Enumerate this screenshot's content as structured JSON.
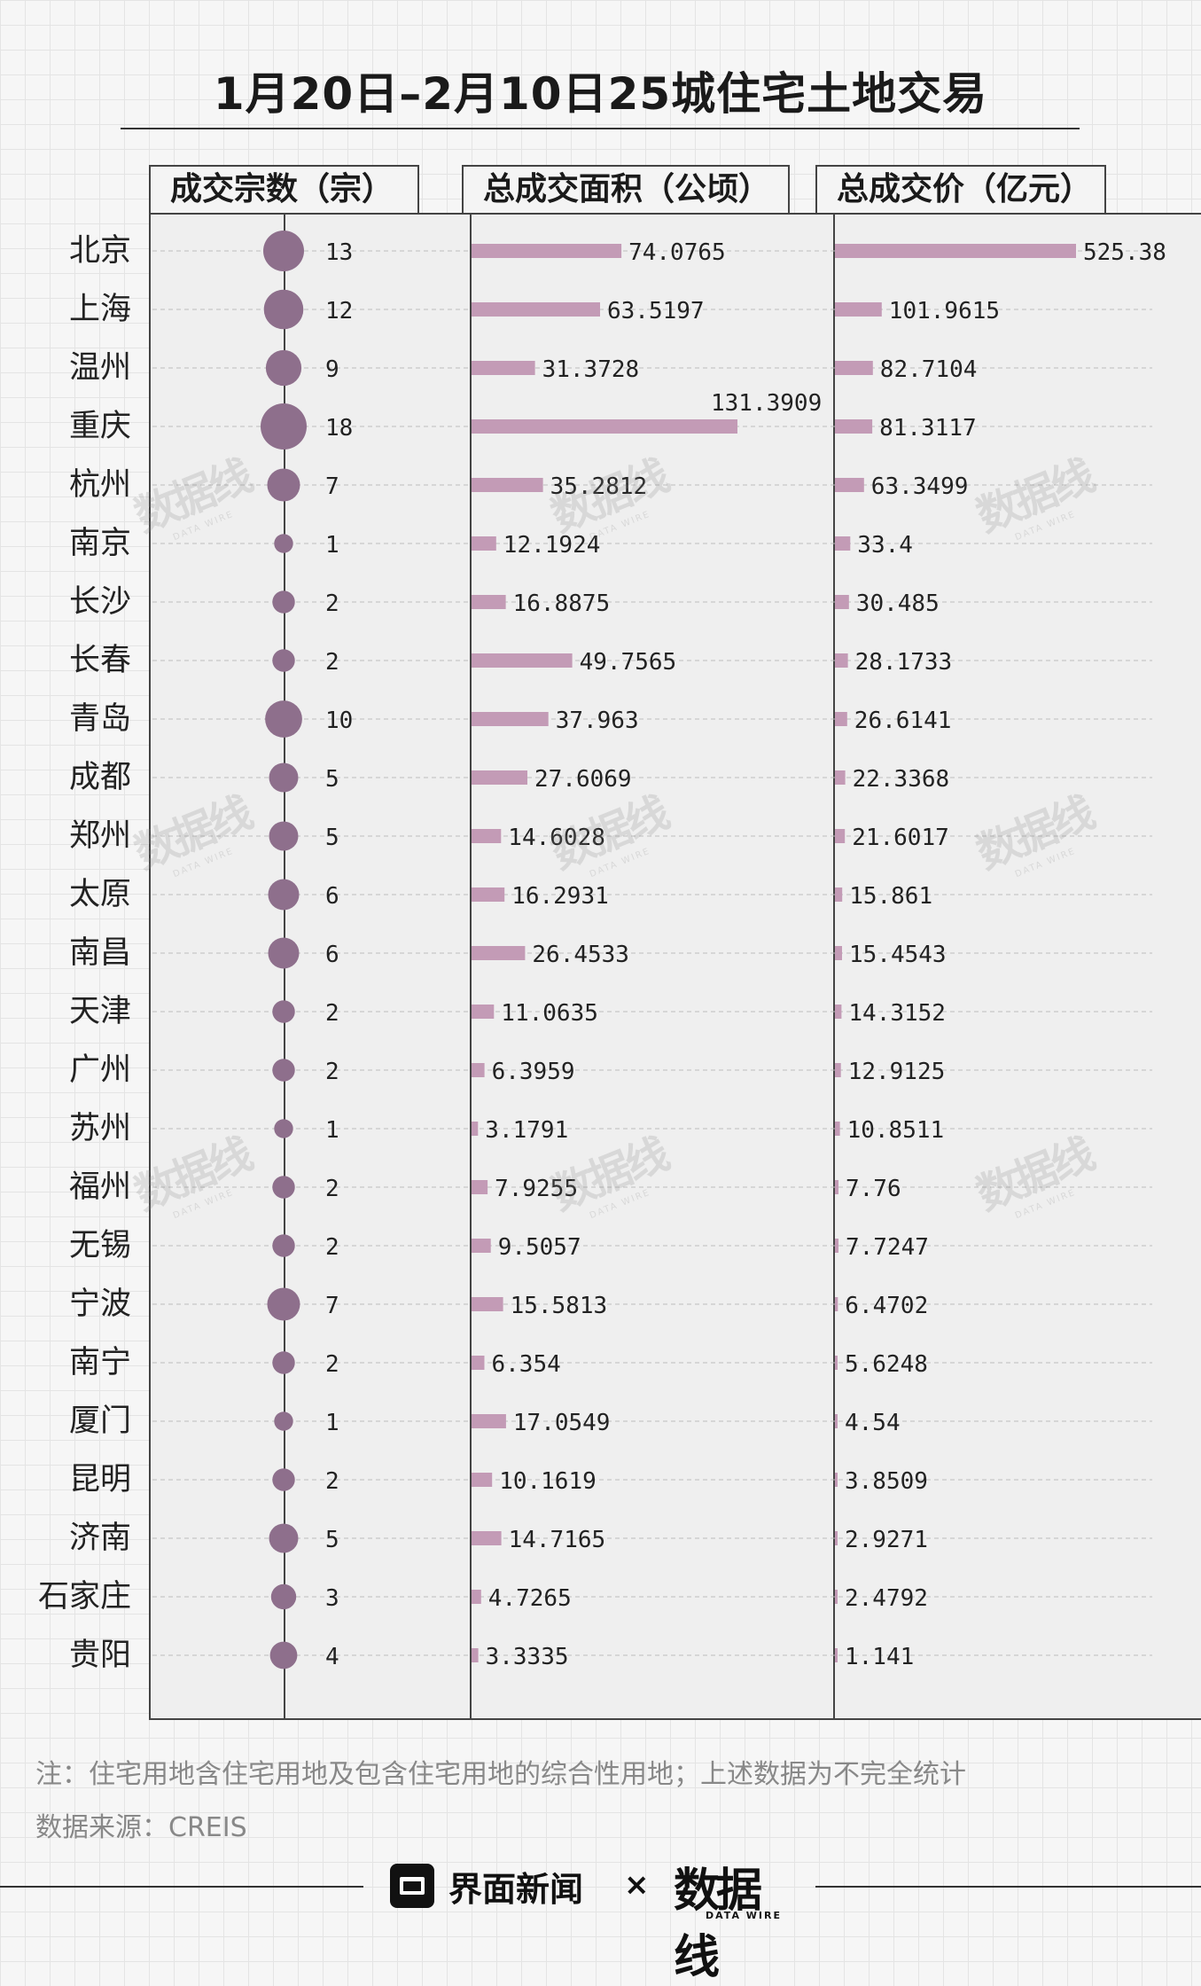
{
  "title": "1月20日–2月10日25城住宅土地交易",
  "headers": {
    "count": "成交宗数（宗）",
    "area": "总成交面积（公顷）",
    "price": "总成交价（亿元）"
  },
  "colors": {
    "dot": "#8e6f8c",
    "bar": "#c39bb6",
    "axis": "#444444",
    "note": "#888888"
  },
  "chart_data": {
    "type": "bar",
    "categories": [
      "北京",
      "上海",
      "温州",
      "重庆",
      "杭州",
      "南京",
      "长沙",
      "长春",
      "青岛",
      "成都",
      "郑州",
      "太原",
      "南昌",
      "天津",
      "广州",
      "苏州",
      "福州",
      "无锡",
      "宁波",
      "南宁",
      "厦门",
      "昆明",
      "济南",
      "石家庄",
      "贵阳"
    ],
    "series": [
      {
        "name": "成交宗数（宗）",
        "marker": "dot",
        "values": [
          13,
          12,
          9,
          18,
          7,
          1,
          2,
          2,
          10,
          5,
          5,
          6,
          6,
          2,
          2,
          1,
          2,
          2,
          7,
          2,
          1,
          2,
          5,
          3,
          4
        ],
        "labels": [
          "13",
          "12",
          "9",
          "18",
          "7",
          "1",
          "2",
          "2",
          "10",
          "5",
          "5",
          "6",
          "6",
          "2",
          "2",
          "1",
          "2",
          "2",
          "7",
          "2",
          "1",
          "2",
          "5",
          "3",
          "4"
        ]
      },
      {
        "name": "总成交面积（公顷）",
        "marker": "bar",
        "values": [
          74.0765,
          63.5197,
          31.3728,
          131.3909,
          35.2812,
          12.1924,
          16.8875,
          49.7565,
          37.963,
          27.6069,
          14.6028,
          16.2931,
          26.4533,
          11.0635,
          6.3959,
          3.1791,
          7.9255,
          9.5057,
          15.5813,
          6.354,
          17.0549,
          10.1619,
          14.7165,
          4.7265,
          3.3335
        ],
        "labels": [
          "74.0765",
          "63.5197",
          "31.3728",
          "131.3909",
          "35.2812",
          "12.1924",
          "16.8875",
          "49.7565",
          "37.963",
          "27.6069",
          "14.6028",
          "16.2931",
          "26.4533",
          "11.0635",
          "6.3959",
          "3.1791",
          "7.9255",
          "9.5057",
          "15.5813",
          "6.354",
          "17.0549",
          "10.1619",
          "14.7165",
          "4.7265",
          "3.3335"
        ]
      },
      {
        "name": "总成交价（亿元）",
        "marker": "bar",
        "values": [
          525.38,
          101.9615,
          82.7104,
          81.3117,
          63.3499,
          33.4,
          30.485,
          28.1733,
          26.6141,
          22.3368,
          21.6017,
          15.861,
          15.4543,
          14.3152,
          12.9125,
          10.8511,
          7.76,
          7.7247,
          6.4702,
          5.6248,
          4.54,
          3.8509,
          2.9271,
          2.4792,
          1.141
        ],
        "labels": [
          "525.38",
          "101.9615",
          "82.7104",
          "81.3117",
          "63.3499",
          "33.4",
          "30.485",
          "28.1733",
          "26.6141",
          "22.3368",
          "21.6017",
          "15.861",
          "15.4543",
          "14.3152",
          "12.9125",
          "10.8511",
          "7.76",
          "7.7247",
          "6.4702",
          "5.6248",
          "4.54",
          "3.8509",
          "2.9271",
          "2.4792",
          "1.141"
        ]
      }
    ],
    "area_max": 131.3909,
    "price_max": 525.38,
    "count_max": 18
  },
  "note": "注：住宅用地含住宅用地及包含住宅用地的综合性用地；上述数据为不完全统计",
  "source": "数据来源：CREIS",
  "footer": {
    "brand_left": "界面新闻",
    "times": "×",
    "brand_right": "数据线",
    "brand_right_sub": "DATA WIRE"
  },
  "watermark": {
    "main": "数据线",
    "sub": "DATA WIRE"
  }
}
